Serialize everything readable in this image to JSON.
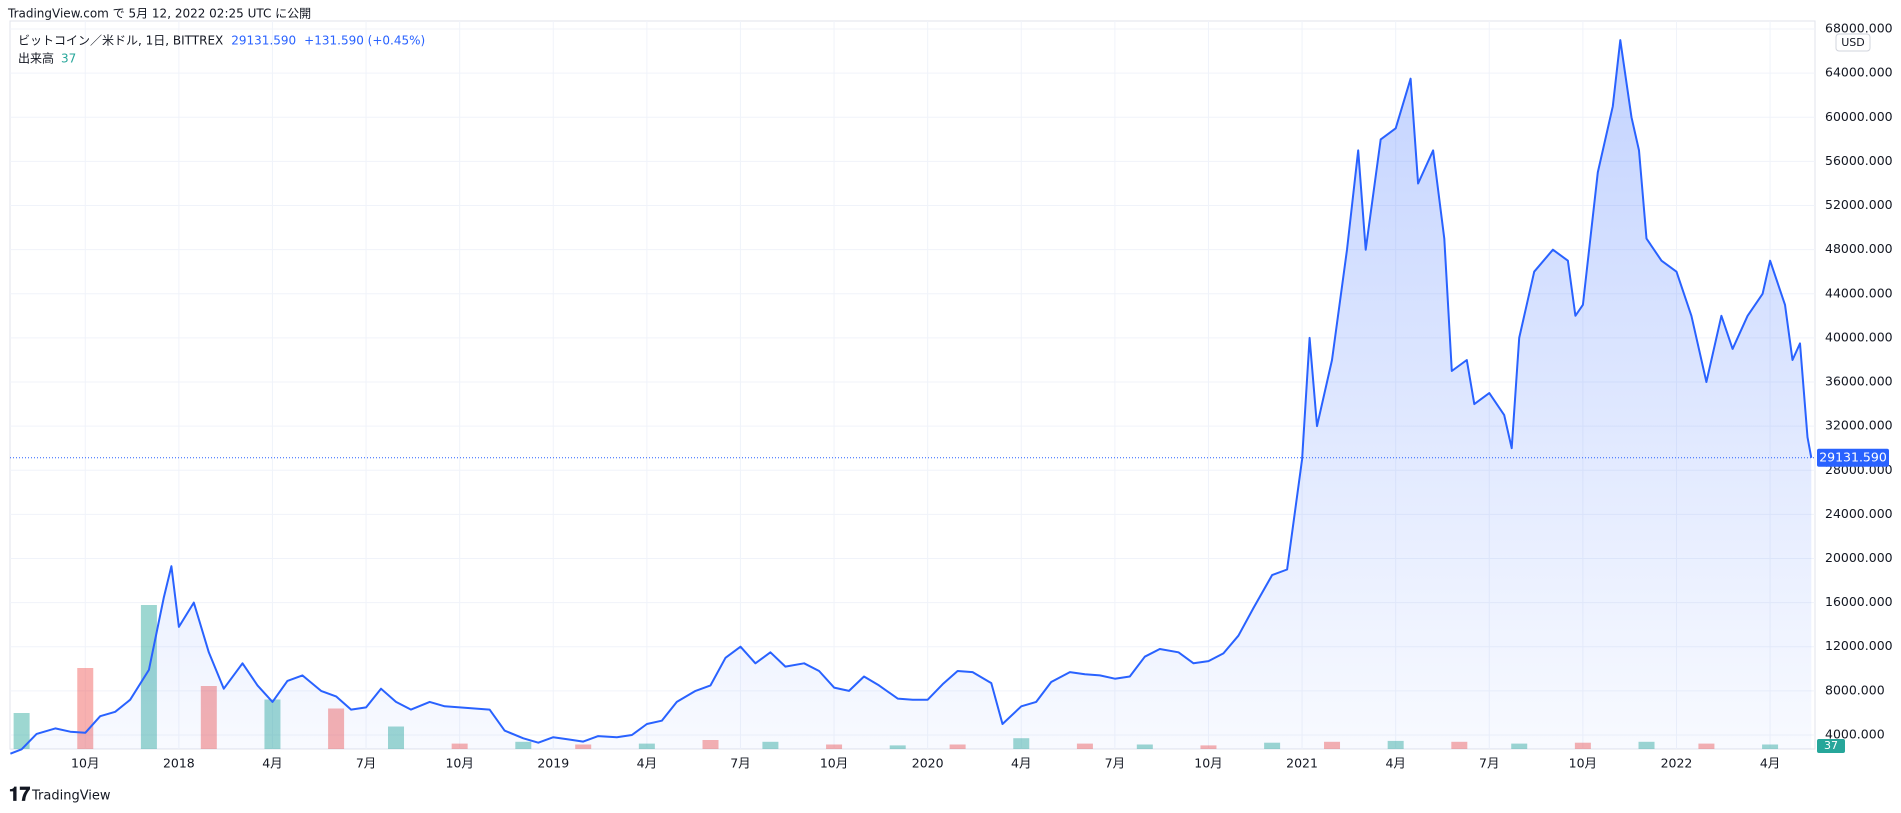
{
  "header": {
    "text": "TradingView.com で 5月 12, 2022 02:25 UTC に公開"
  },
  "footer": {
    "brand": "TradingView"
  },
  "chart_data": {
    "type": "line",
    "title": "ビットコイン／米ドル, 1日, BITTREX",
    "change": "+131.590 (+0.45%)",
    "currency": "USD",
    "last_price": {
      "value": 29131.59,
      "label": "29131.590"
    },
    "xlim": [
      2017.549,
      2022.37
    ],
    "ylim": [
      2730,
      68730
    ],
    "grid": true,
    "color": "#2962ff",
    "xticks": [
      {
        "value": 2017.75,
        "label": "10月"
      },
      {
        "value": 2018,
        "label": "2018"
      },
      {
        "value": 2018.25,
        "label": "4月"
      },
      {
        "value": 2018.5,
        "label": "7月"
      },
      {
        "value": 2018.75,
        "label": "10月"
      },
      {
        "value": 2019,
        "label": "2019"
      },
      {
        "value": 2019.25,
        "label": "4月"
      },
      {
        "value": 2019.5,
        "label": "7月"
      },
      {
        "value": 2019.75,
        "label": "10月"
      },
      {
        "value": 2020,
        "label": "2020"
      },
      {
        "value": 2020.25,
        "label": "4月"
      },
      {
        "value": 2020.5,
        "label": "7月"
      },
      {
        "value": 2020.75,
        "label": "10月"
      },
      {
        "value": 2021,
        "label": "2021"
      },
      {
        "value": 2021.25,
        "label": "4月"
      },
      {
        "value": 2021.5,
        "label": "7月"
      },
      {
        "value": 2021.75,
        "label": "10月"
      },
      {
        "value": 2022,
        "label": "2022"
      },
      {
        "value": 2022.25,
        "label": "4月"
      }
    ],
    "yticks": [
      {
        "value": 4000,
        "label": "4000.000"
      },
      {
        "value": 8000,
        "label": "8000.000"
      },
      {
        "value": 12000,
        "label": "12000.000"
      },
      {
        "value": 16000,
        "label": "16000.000"
      },
      {
        "value": 20000,
        "label": "20000.000"
      },
      {
        "value": 24000,
        "label": "24000.000"
      },
      {
        "value": 28000,
        "label": "28000.000"
      },
      {
        "value": 32000,
        "label": "32000.000"
      },
      {
        "value": 36000,
        "label": "36000.000"
      },
      {
        "value": 40000,
        "label": "40000.000"
      },
      {
        "value": 44000,
        "label": "44000.000"
      },
      {
        "value": 48000,
        "label": "48000.000"
      },
      {
        "value": 52000,
        "label": "52000.000"
      },
      {
        "value": 56000,
        "label": "56000.000"
      },
      {
        "value": 60000,
        "label": "60000.000"
      },
      {
        "value": 64000,
        "label": "64000.000"
      },
      {
        "value": 68000,
        "label": "68000.000"
      }
    ],
    "series": [
      {
        "color": "#2962ff",
        "x": [
          2017.55,
          2017.58,
          2017.62,
          2017.67,
          2017.71,
          2017.75,
          2017.79,
          2017.83,
          2017.87,
          2017.92,
          2017.96,
          2017.98,
          2018.0,
          2018.04,
          2018.08,
          2018.12,
          2018.17,
          2018.21,
          2018.25,
          2018.29,
          2018.33,
          2018.38,
          2018.42,
          2018.46,
          2018.5,
          2018.54,
          2018.58,
          2018.62,
          2018.67,
          2018.71,
          2018.75,
          2018.79,
          2018.83,
          2018.87,
          2018.92,
          2018.96,
          2019.0,
          2019.04,
          2019.08,
          2019.12,
          2019.17,
          2019.21,
          2019.25,
          2019.29,
          2019.33,
          2019.38,
          2019.42,
          2019.46,
          2019.5,
          2019.54,
          2019.58,
          2019.62,
          2019.67,
          2019.71,
          2019.75,
          2019.79,
          2019.83,
          2019.87,
          2019.92,
          2019.96,
          2020.0,
          2020.04,
          2020.08,
          2020.12,
          2020.17,
          2020.2,
          2020.25,
          2020.29,
          2020.33,
          2020.38,
          2020.42,
          2020.46,
          2020.5,
          2020.54,
          2020.58,
          2020.62,
          2020.67,
          2020.71,
          2020.75,
          2020.79,
          2020.83,
          2020.87,
          2020.92,
          2020.96,
          2021.0,
          2021.02,
          2021.04,
          2021.08,
          2021.12,
          2021.15,
          2021.17,
          2021.21,
          2021.25,
          2021.29,
          2021.31,
          2021.35,
          2021.38,
          2021.4,
          2021.44,
          2021.46,
          2021.5,
          2021.54,
          2021.56,
          2021.58,
          2021.62,
          2021.67,
          2021.71,
          2021.73,
          2021.75,
          2021.79,
          2021.83,
          2021.85,
          2021.88,
          2021.9,
          2021.92,
          2021.96,
          2022.0,
          2022.04,
          2022.08,
          2022.12,
          2022.15,
          2022.19,
          2022.23,
          2022.25,
          2022.29,
          2022.31,
          2022.33,
          2022.35,
          2022.36
        ],
        "values": [
          2300,
          2700,
          4100,
          4600,
          4300,
          4200,
          5700,
          6100,
          7200,
          9900,
          16500,
          19300,
          13800,
          16000,
          11500,
          8200,
          10500,
          8500,
          7000,
          8900,
          9400,
          8000,
          7500,
          6300,
          6500,
          8200,
          7000,
          6300,
          7000,
          6600,
          6500,
          6400,
          6300,
          4400,
          3700,
          3300,
          3800,
          3600,
          3400,
          3900,
          3800,
          4000,
          5000,
          5300,
          7000,
          8000,
          8500,
          11000,
          12000,
          10500,
          11500,
          10200,
          10500,
          9800,
          8300,
          8000,
          9300,
          8500,
          7300,
          7200,
          7200,
          8600,
          9800,
          9700,
          8700,
          5000,
          6600,
          7000,
          8800,
          9700,
          9500,
          9400,
          9100,
          9300,
          11100,
          11800,
          11500,
          10500,
          10700,
          11400,
          13000,
          15500,
          18500,
          19000,
          29000,
          40000,
          32000,
          38000,
          48000,
          57000,
          48000,
          58000,
          59000,
          63500,
          54000,
          57000,
          49000,
          37000,
          38000,
          34000,
          35000,
          33000,
          30000,
          40000,
          46000,
          48000,
          47000,
          42000,
          43000,
          55000,
          61000,
          67000,
          60000,
          57000,
          49000,
          47000,
          46000,
          42000,
          36000,
          42000,
          39000,
          42000,
          44000,
          47000,
          43000,
          38000,
          39500,
          31000,
          29131.59
        ]
      }
    ],
    "volume": {
      "name": "出来高",
      "current": 37,
      "ylim": [
        0,
        200
      ],
      "x": [
        2017.58,
        2017.75,
        2017.92,
        2018.08,
        2018.25,
        2018.42,
        2018.58,
        2018.75,
        2018.92,
        2019.08,
        2019.25,
        2019.42,
        2019.58,
        2019.75,
        2019.92,
        2020.08,
        2020.25,
        2020.42,
        2020.58,
        2020.75,
        2020.92,
        2021.08,
        2021.25,
        2021.42,
        2021.58,
        2021.75,
        2021.92,
        2022.08,
        2022.25
      ],
      "values": [
        40,
        90,
        160,
        70,
        55,
        45,
        25,
        6,
        8,
        5,
        6,
        10,
        8,
        5,
        4,
        5,
        12,
        6,
        5,
        4,
        7,
        8,
        9,
        8,
        6,
        7,
        8,
        6,
        5
      ],
      "colors": [
        "#26a69a",
        "#ef5350",
        "#26a69a",
        "#ef5350",
        "#26a69a",
        "#ef5350",
        "#26a69a",
        "#ef5350",
        "#26a69a",
        "#ef5350",
        "#26a69a",
        "#ef5350",
        "#26a69a",
        "#ef5350",
        "#26a69a",
        "#ef5350",
        "#26a69a",
        "#ef5350",
        "#26a69a",
        "#ef5350",
        "#26a69a",
        "#ef5350",
        "#26a69a",
        "#ef5350",
        "#26a69a",
        "#ef5350",
        "#26a69a",
        "#ef5350",
        "#26a69a"
      ]
    }
  }
}
